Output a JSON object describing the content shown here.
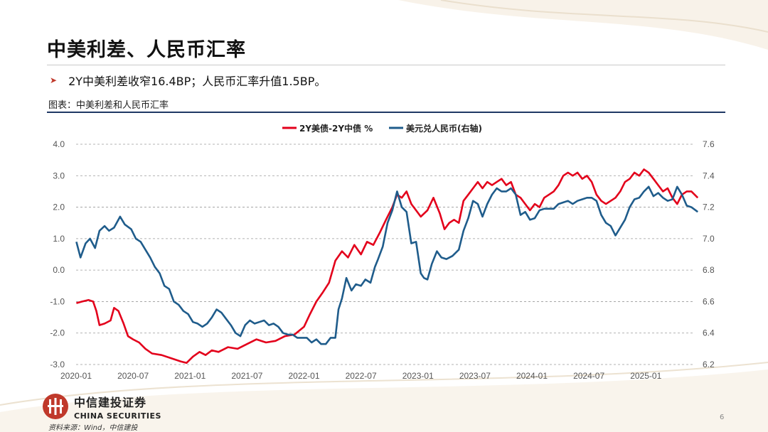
{
  "slide": {
    "title": "中美利差、人民币汇率",
    "bullet": "2Y中美利差收窄16.4BP；人民币汇率升值1.5BP。",
    "caption": "图表：中美利差和人民币汇率",
    "logo_cn": "中信建投证券",
    "logo_en": "CHINA SECURITIES",
    "source": "资料来源：Wind，中信建投",
    "page_number": "6",
    "bullet_icon": "arrow-right-icon",
    "brand_color": "#c0392b"
  },
  "chart_data": {
    "type": "line",
    "title": "",
    "x_tick_labels": [
      "2020-01",
      "2020-07",
      "2021-01",
      "2021-07",
      "2022-01",
      "2022-07",
      "2023-01",
      "2023-07",
      "2024-01",
      "2024-07",
      "2025-01"
    ],
    "x_range": [
      "2020-01",
      "2025-06"
    ],
    "y_left": {
      "ticks": [
        "4.0",
        "3.0",
        "2.0",
        "1.0",
        "0.0",
        "-1.0",
        "-2.0",
        "-3.0"
      ],
      "range": [
        -3,
        4
      ]
    },
    "y_right": {
      "ticks": [
        "7.6",
        "7.4",
        "7.2",
        "7.0",
        "6.8",
        "6.6",
        "6.4",
        "6.2"
      ],
      "range": [
        6.2,
        7.6
      ]
    },
    "grid": "horizontal dashed",
    "legend_position": "top-center",
    "series": [
      {
        "name": "2Y美债-2Y中债 %",
        "axis": "left",
        "color": "#e3001b",
        "points": [
          [
            "2020-01-02",
            -1.05
          ],
          [
            "2020-01-20",
            -1.0
          ],
          [
            "2020-02-10",
            -0.95
          ],
          [
            "2020-02-25",
            -1.0
          ],
          [
            "2020-03-05",
            -1.3
          ],
          [
            "2020-03-15",
            -1.75
          ],
          [
            "2020-04-01",
            -1.7
          ],
          [
            "2020-04-20",
            -1.6
          ],
          [
            "2020-05-01",
            -1.2
          ],
          [
            "2020-05-15",
            -1.3
          ],
          [
            "2020-06-01",
            -1.7
          ],
          [
            "2020-06-15",
            -2.1
          ],
          [
            "2020-07-01",
            -2.2
          ],
          [
            "2020-07-20",
            -2.3
          ],
          [
            "2020-08-10",
            -2.5
          ],
          [
            "2020-09-01",
            -2.65
          ],
          [
            "2020-10-01",
            -2.7
          ],
          [
            "2020-11-01",
            -2.8
          ],
          [
            "2020-12-01",
            -2.9
          ],
          [
            "2020-12-20",
            -2.95
          ],
          [
            "2021-01-10",
            -2.75
          ],
          [
            "2021-02-01",
            -2.6
          ],
          [
            "2021-02-20",
            -2.7
          ],
          [
            "2021-03-10",
            -2.55
          ],
          [
            "2021-04-01",
            -2.6
          ],
          [
            "2021-05-01",
            -2.45
          ],
          [
            "2021-06-01",
            -2.5
          ],
          [
            "2021-07-01",
            -2.35
          ],
          [
            "2021-08-01",
            -2.2
          ],
          [
            "2021-09-01",
            -2.3
          ],
          [
            "2021-10-01",
            -2.25
          ],
          [
            "2021-11-01",
            -2.1
          ],
          [
            "2021-12-01",
            -2.05
          ],
          [
            "2022-01-01",
            -1.8
          ],
          [
            "2022-01-20",
            -1.4
          ],
          [
            "2022-02-10",
            -1.0
          ],
          [
            "2022-03-01",
            -0.7
          ],
          [
            "2022-03-20",
            -0.4
          ],
          [
            "2022-04-10",
            0.3
          ],
          [
            "2022-05-01",
            0.6
          ],
          [
            "2022-05-20",
            0.4
          ],
          [
            "2022-06-10",
            0.8
          ],
          [
            "2022-07-01",
            0.5
          ],
          [
            "2022-07-20",
            0.9
          ],
          [
            "2022-08-10",
            0.8
          ],
          [
            "2022-09-01",
            1.2
          ],
          [
            "2022-09-20",
            1.6
          ],
          [
            "2022-10-10",
            2.0
          ],
          [
            "2022-10-25",
            2.4
          ],
          [
            "2022-11-10",
            2.3
          ],
          [
            "2022-11-25",
            2.5
          ],
          [
            "2022-12-10",
            2.1
          ],
          [
            "2022-12-25",
            1.9
          ],
          [
            "2023-01-10",
            1.7
          ],
          [
            "2023-02-01",
            1.9
          ],
          [
            "2023-02-20",
            2.3
          ],
          [
            "2023-03-10",
            1.8
          ],
          [
            "2023-03-25",
            1.3
          ],
          [
            "2023-04-10",
            1.5
          ],
          [
            "2023-04-25",
            1.6
          ],
          [
            "2023-05-10",
            1.5
          ],
          [
            "2023-05-25",
            2.2
          ],
          [
            "2023-06-10",
            2.4
          ],
          [
            "2023-06-25",
            2.6
          ],
          [
            "2023-07-10",
            2.8
          ],
          [
            "2023-07-25",
            2.6
          ],
          [
            "2023-08-10",
            2.8
          ],
          [
            "2023-08-25",
            2.7
          ],
          [
            "2023-09-10",
            2.8
          ],
          [
            "2023-09-25",
            2.9
          ],
          [
            "2023-10-10",
            2.7
          ],
          [
            "2023-10-25",
            2.8
          ],
          [
            "2023-11-10",
            2.4
          ],
          [
            "2023-11-25",
            2.3
          ],
          [
            "2023-12-10",
            2.1
          ],
          [
            "2023-12-25",
            1.9
          ],
          [
            "2024-01-10",
            2.1
          ],
          [
            "2024-01-25",
            2.0
          ],
          [
            "2024-02-10",
            2.3
          ],
          [
            "2024-02-25",
            2.4
          ],
          [
            "2024-03-10",
            2.5
          ],
          [
            "2024-03-25",
            2.7
          ],
          [
            "2024-04-10",
            3.0
          ],
          [
            "2024-04-25",
            3.1
          ],
          [
            "2024-05-10",
            3.0
          ],
          [
            "2024-05-25",
            3.1
          ],
          [
            "2024-06-10",
            2.9
          ],
          [
            "2024-06-25",
            3.0
          ],
          [
            "2024-07-10",
            2.8
          ],
          [
            "2024-07-25",
            2.4
          ],
          [
            "2024-08-10",
            2.2
          ],
          [
            "2024-08-25",
            2.1
          ],
          [
            "2024-09-10",
            2.2
          ],
          [
            "2024-09-25",
            2.3
          ],
          [
            "2024-10-10",
            2.5
          ],
          [
            "2024-10-25",
            2.8
          ],
          [
            "2024-11-10",
            2.9
          ],
          [
            "2024-11-25",
            3.1
          ],
          [
            "2024-12-10",
            3.0
          ],
          [
            "2024-12-25",
            3.2
          ],
          [
            "2025-01-10",
            3.1
          ],
          [
            "2025-01-25",
            2.9
          ],
          [
            "2025-02-10",
            2.7
          ],
          [
            "2025-02-25",
            2.5
          ],
          [
            "2025-03-10",
            2.6
          ],
          [
            "2025-03-25",
            2.3
          ],
          [
            "2025-04-10",
            2.1
          ],
          [
            "2025-04-25",
            2.4
          ],
          [
            "2025-05-10",
            2.5
          ],
          [
            "2025-05-25",
            2.5
          ],
          [
            "2025-06-15",
            2.3
          ]
        ]
      },
      {
        "name": "美元兑人民币(右轴)",
        "axis": "right",
        "color": "#1f5c8b",
        "points": [
          [
            "2020-01-02",
            6.98
          ],
          [
            "2020-01-15",
            6.88
          ],
          [
            "2020-02-01",
            6.97
          ],
          [
            "2020-02-15",
            7.0
          ],
          [
            "2020-03-01",
            6.94
          ],
          [
            "2020-03-15",
            7.05
          ],
          [
            "2020-04-01",
            7.08
          ],
          [
            "2020-04-15",
            7.05
          ],
          [
            "2020-05-01",
            7.07
          ],
          [
            "2020-05-20",
            7.14
          ],
          [
            "2020-06-05",
            7.09
          ],
          [
            "2020-06-25",
            7.06
          ],
          [
            "2020-07-10",
            7.0
          ],
          [
            "2020-07-25",
            6.98
          ],
          [
            "2020-08-10",
            6.93
          ],
          [
            "2020-08-25",
            6.88
          ],
          [
            "2020-09-10",
            6.82
          ],
          [
            "2020-09-25",
            6.78
          ],
          [
            "2020-10-10",
            6.7
          ],
          [
            "2020-10-25",
            6.68
          ],
          [
            "2020-11-10",
            6.6
          ],
          [
            "2020-11-25",
            6.58
          ],
          [
            "2020-12-10",
            6.54
          ],
          [
            "2020-12-25",
            6.52
          ],
          [
            "2021-01-10",
            6.47
          ],
          [
            "2021-01-25",
            6.46
          ],
          [
            "2021-02-10",
            6.44
          ],
          [
            "2021-02-25",
            6.46
          ],
          [
            "2021-03-10",
            6.5
          ],
          [
            "2021-03-25",
            6.55
          ],
          [
            "2021-04-10",
            6.53
          ],
          [
            "2021-04-25",
            6.49
          ],
          [
            "2021-05-10",
            6.45
          ],
          [
            "2021-05-25",
            6.4
          ],
          [
            "2021-06-10",
            6.38
          ],
          [
            "2021-06-25",
            6.45
          ],
          [
            "2021-07-10",
            6.48
          ],
          [
            "2021-07-25",
            6.46
          ],
          [
            "2021-08-10",
            6.47
          ],
          [
            "2021-08-25",
            6.48
          ],
          [
            "2021-09-10",
            6.45
          ],
          [
            "2021-09-25",
            6.46
          ],
          [
            "2021-10-10",
            6.44
          ],
          [
            "2021-10-25",
            6.4
          ],
          [
            "2021-11-10",
            6.39
          ],
          [
            "2021-11-25",
            6.39
          ],
          [
            "2021-12-10",
            6.37
          ],
          [
            "2021-12-25",
            6.37
          ],
          [
            "2022-01-10",
            6.37
          ],
          [
            "2022-01-25",
            6.34
          ],
          [
            "2022-02-10",
            6.36
          ],
          [
            "2022-02-25",
            6.33
          ],
          [
            "2022-03-10",
            6.33
          ],
          [
            "2022-03-25",
            6.37
          ],
          [
            "2022-04-10",
            6.37
          ],
          [
            "2022-04-20",
            6.55
          ],
          [
            "2022-05-01",
            6.62
          ],
          [
            "2022-05-15",
            6.75
          ],
          [
            "2022-06-01",
            6.67
          ],
          [
            "2022-06-15",
            6.71
          ],
          [
            "2022-07-01",
            6.7
          ],
          [
            "2022-07-15",
            6.74
          ],
          [
            "2022-08-01",
            6.72
          ],
          [
            "2022-08-15",
            6.82
          ],
          [
            "2022-08-25",
            6.87
          ],
          [
            "2022-09-10",
            6.95
          ],
          [
            "2022-09-25",
            7.1
          ],
          [
            "2022-10-10",
            7.18
          ],
          [
            "2022-10-25",
            7.3
          ],
          [
            "2022-11-10",
            7.2
          ],
          [
            "2022-11-25",
            7.17
          ],
          [
            "2022-12-10",
            6.97
          ],
          [
            "2022-12-25",
            6.98
          ],
          [
            "2023-01-10",
            6.78
          ],
          [
            "2023-01-20",
            6.75
          ],
          [
            "2023-02-01",
            6.74
          ],
          [
            "2023-02-15",
            6.84
          ],
          [
            "2023-03-01",
            6.92
          ],
          [
            "2023-03-15",
            6.88
          ],
          [
            "2023-04-01",
            6.87
          ],
          [
            "2023-04-20",
            6.89
          ],
          [
            "2023-05-10",
            6.93
          ],
          [
            "2023-05-25",
            7.05
          ],
          [
            "2023-06-10",
            7.13
          ],
          [
            "2023-06-25",
            7.24
          ],
          [
            "2023-07-10",
            7.22
          ],
          [
            "2023-07-25",
            7.14
          ],
          [
            "2023-08-10",
            7.22
          ],
          [
            "2023-08-25",
            7.28
          ],
          [
            "2023-09-10",
            7.32
          ],
          [
            "2023-09-25",
            7.3
          ],
          [
            "2023-10-10",
            7.3
          ],
          [
            "2023-10-25",
            7.32
          ],
          [
            "2023-11-10",
            7.28
          ],
          [
            "2023-11-25",
            7.15
          ],
          [
            "2023-12-10",
            7.17
          ],
          [
            "2023-12-25",
            7.12
          ],
          [
            "2024-01-10",
            7.13
          ],
          [
            "2024-01-25",
            7.18
          ],
          [
            "2024-02-10",
            7.19
          ],
          [
            "2024-02-25",
            7.19
          ],
          [
            "2024-03-10",
            7.19
          ],
          [
            "2024-03-25",
            7.22
          ],
          [
            "2024-04-10",
            7.23
          ],
          [
            "2024-04-25",
            7.24
          ],
          [
            "2024-05-10",
            7.22
          ],
          [
            "2024-05-25",
            7.24
          ],
          [
            "2024-06-10",
            7.25
          ],
          [
            "2024-06-25",
            7.26
          ],
          [
            "2024-07-10",
            7.26
          ],
          [
            "2024-07-25",
            7.24
          ],
          [
            "2024-08-10",
            7.15
          ],
          [
            "2024-08-25",
            7.1
          ],
          [
            "2024-09-10",
            7.08
          ],
          [
            "2024-09-25",
            7.02
          ],
          [
            "2024-10-10",
            7.07
          ],
          [
            "2024-10-25",
            7.12
          ],
          [
            "2024-11-10",
            7.2
          ],
          [
            "2024-11-25",
            7.25
          ],
          [
            "2024-12-10",
            7.26
          ],
          [
            "2024-12-25",
            7.3
          ],
          [
            "2025-01-10",
            7.33
          ],
          [
            "2025-01-25",
            7.27
          ],
          [
            "2025-02-10",
            7.29
          ],
          [
            "2025-02-25",
            7.26
          ],
          [
            "2025-03-10",
            7.24
          ],
          [
            "2025-03-25",
            7.25
          ],
          [
            "2025-04-10",
            7.33
          ],
          [
            "2025-04-25",
            7.28
          ],
          [
            "2025-05-10",
            7.21
          ],
          [
            "2025-05-25",
            7.2
          ],
          [
            "2025-06-15",
            7.17
          ]
        ]
      }
    ]
  }
}
